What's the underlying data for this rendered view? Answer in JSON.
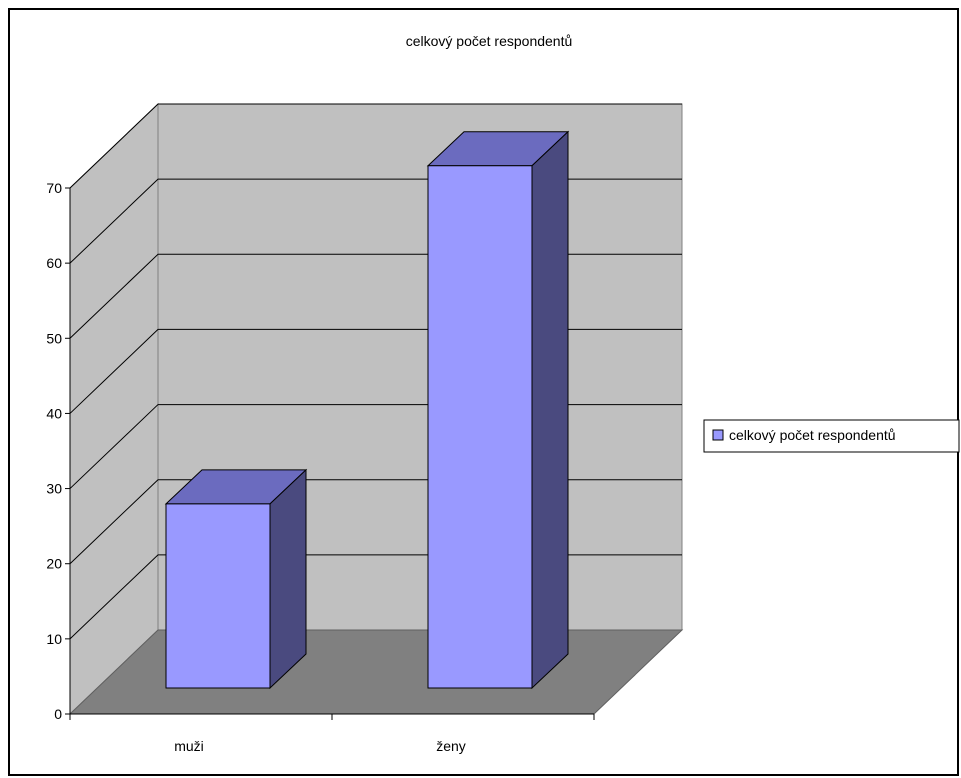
{
  "chart_data": {
    "type": "bar",
    "title": "celkový počet respondentů",
    "categories": [
      "muži",
      "ženy"
    ],
    "series": [
      {
        "name": "celkový počet respondentů",
        "values": [
          24.5,
          69.5
        ]
      }
    ],
    "ylim": [
      0,
      70
    ],
    "yticks": [
      "0",
      "10",
      "20",
      "30",
      "40",
      "50",
      "60",
      "70"
    ],
    "xlabel": "",
    "ylabel": "",
    "grid": true,
    "legend_position": "right",
    "three_d": true
  },
  "colors": {
    "bar_front": "#9999ff",
    "bar_top": "#6b6bbf",
    "bar_side": "#4a4a7f",
    "wall": "#c0c0c0",
    "floor": "#808080",
    "frame": "#000000"
  }
}
